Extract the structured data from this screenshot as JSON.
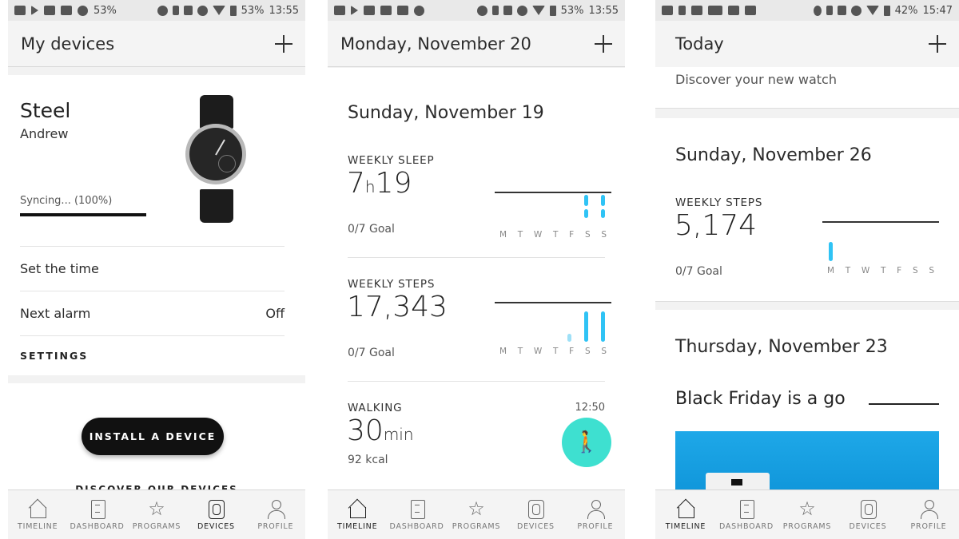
{
  "screens": [
    {
      "status": {
        "battery": "53%",
        "time": "13:55",
        "notif_pct": "53%"
      },
      "title": "My devices",
      "device": {
        "name": "Steel",
        "owner": "Andrew",
        "sync": "Syncing... (100%)",
        "sync_progress": 1.0
      },
      "rows": [
        {
          "label": "Set the time",
          "value": ""
        },
        {
          "label": "Next alarm",
          "value": "Off"
        }
      ],
      "settings_label": "SETTINGS",
      "install_button": "INSTALL A DEVICE",
      "discover_label": "DISCOVER OUR DEVICES",
      "nav_active": "DEVICES"
    },
    {
      "status": {
        "battery": "53%",
        "time": "13:55"
      },
      "title": "Monday, November 20",
      "day": "Sunday, November 19",
      "sleep": {
        "label": "WEEKLY SLEEP",
        "hours": "7",
        "h": "h",
        "mins": "19",
        "goal": "0/7 Goal"
      },
      "steps": {
        "label": "WEEKLY STEPS",
        "value": "17,343",
        "goal": "0/7 Goal"
      },
      "walking": {
        "label": "WALKING",
        "value": "30",
        "unit": "min",
        "kcal": "92 kcal",
        "time": "12:50"
      },
      "nav_active": "TIMELINE"
    },
    {
      "status": {
        "battery": "42%",
        "time": "15:47"
      },
      "title": "Today",
      "discover_text": "Discover your new watch",
      "day": "Sunday, November 26",
      "steps": {
        "label": "WEEKLY STEPS",
        "value": "5,174",
        "goal": "0/7 Goal"
      },
      "day2": "Thursday, November 23",
      "black_friday": "Black Friday is a go",
      "nav_active": "TIMELINE"
    }
  ],
  "weekdays": [
    "M",
    "T",
    "W",
    "T",
    "F",
    "S",
    "S"
  ],
  "nav": [
    "TIMELINE",
    "DASHBOARD",
    "PROGRAMS",
    "DEVICES",
    "PROFILE"
  ],
  "colors": {
    "accent_blue": "#2fc3f5",
    "walk_teal": "#3ee0d0",
    "button_black": "#111111"
  }
}
